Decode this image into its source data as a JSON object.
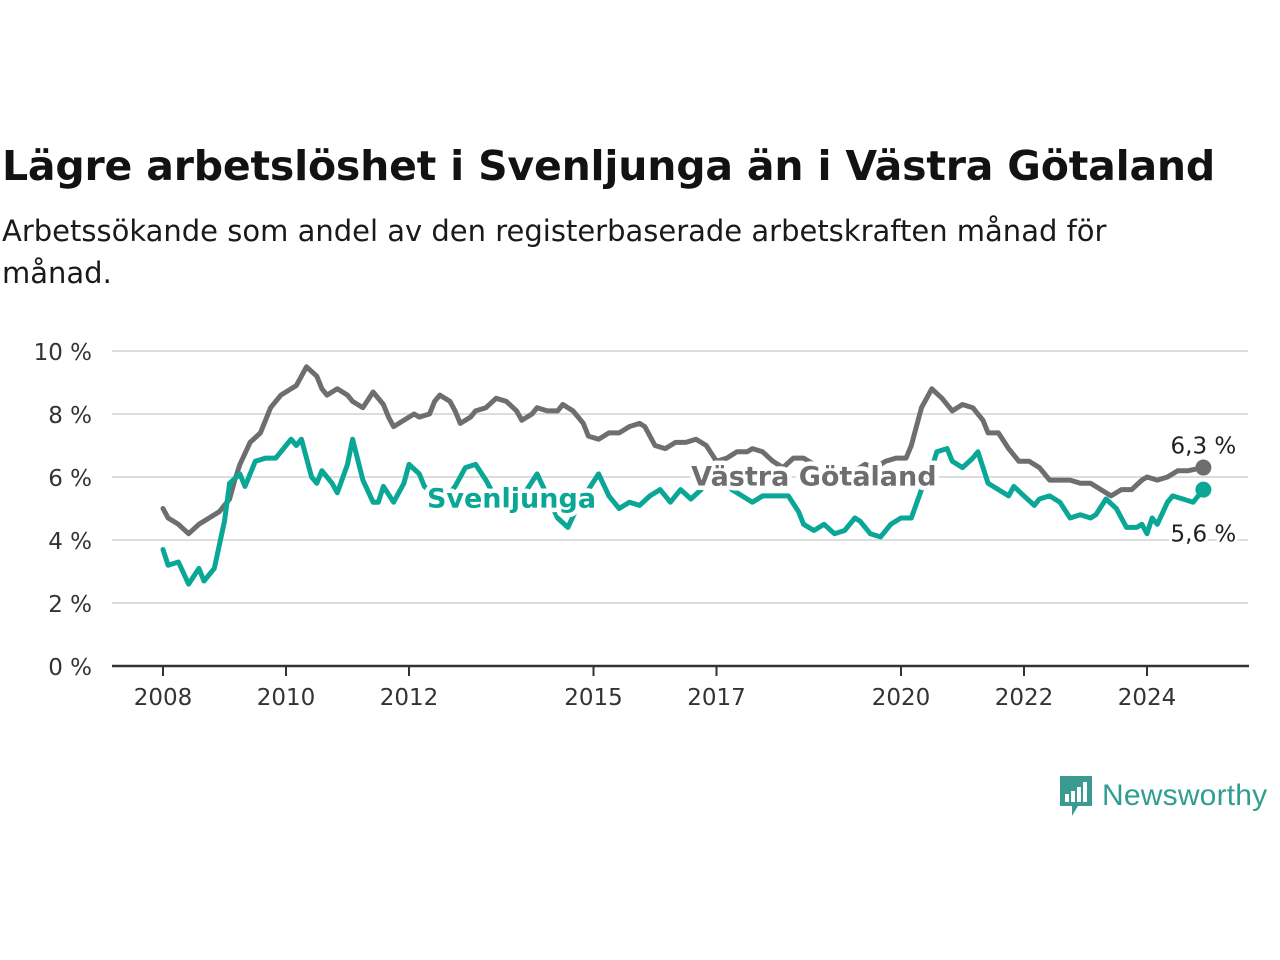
{
  "header": {
    "title": "Lägre arbetslöshet i Svenljunga än i Västra Götaland",
    "subtitle": "Arbetssökande som andel av den registerbaserade arbetskraften månad för månad."
  },
  "brand": {
    "name": "Newsworthy",
    "icon": "newsworthy-bar-chart-icon"
  },
  "colors": {
    "svenljunga": "#0aa696",
    "vastra": "#6d6e70",
    "grid": "#dddddd",
    "axis": "#333333"
  },
  "chart_data": {
    "type": "line",
    "title": "Lägre arbetslöshet i Svenljunga än i Västra Götaland",
    "subtitle": "Arbetssökande som andel av den registerbaserade arbetskraften månad för månad.",
    "xlabel": "",
    "ylabel": "",
    "ylim": [
      0,
      10
    ],
    "yticks": [
      {
        "value": 0,
        "label": "0 %"
      },
      {
        "value": 2,
        "label": "2 %"
      },
      {
        "value": 4,
        "label": "4 %"
      },
      {
        "value": 6,
        "label": "6 %"
      },
      {
        "value": 8,
        "label": "8 %"
      },
      {
        "value": 10,
        "label": "10 %"
      }
    ],
    "xlim": [
      "2008-01",
      "2025-02"
    ],
    "xticks": [
      {
        "value": "2008-01",
        "label": "2008"
      },
      {
        "value": "2010-01",
        "label": "2010"
      },
      {
        "value": "2012-01",
        "label": "2012"
      },
      {
        "value": "2015-01",
        "label": "2015"
      },
      {
        "value": "2017-01",
        "label": "2017"
      },
      {
        "value": "2020-01",
        "label": "2020"
      },
      {
        "value": "2022-01",
        "label": "2022"
      },
      {
        "value": "2024-01",
        "label": "2024"
      }
    ],
    "grid": true,
    "legend": "inline labels",
    "series": [
      {
        "name": "Västra Götaland",
        "color": "#6d6e70",
        "end_label": "6,3 %",
        "points": [
          [
            "2008-01",
            5.0
          ],
          [
            "2008-02",
            4.7
          ],
          [
            "2008-04",
            4.5
          ],
          [
            "2008-06",
            4.2
          ],
          [
            "2008-08",
            4.5
          ],
          [
            "2008-10",
            4.7
          ],
          [
            "2008-12",
            4.9
          ],
          [
            "2009-02",
            5.3
          ],
          [
            "2009-03",
            5.9
          ],
          [
            "2009-04",
            6.4
          ],
          [
            "2009-06",
            7.1
          ],
          [
            "2009-08",
            7.4
          ],
          [
            "2009-10",
            8.2
          ],
          [
            "2009-12",
            8.6
          ],
          [
            "2010-02",
            8.8
          ],
          [
            "2010-03",
            8.9
          ],
          [
            "2010-05",
            9.5
          ],
          [
            "2010-07",
            9.2
          ],
          [
            "2010-08",
            8.8
          ],
          [
            "2010-09",
            8.6
          ],
          [
            "2010-11",
            8.8
          ],
          [
            "2011-01",
            8.6
          ],
          [
            "2011-02",
            8.4
          ],
          [
            "2011-04",
            8.2
          ],
          [
            "2011-06",
            8.7
          ],
          [
            "2011-08",
            8.3
          ],
          [
            "2011-09",
            7.9
          ],
          [
            "2011-10",
            7.6
          ],
          [
            "2011-12",
            7.8
          ],
          [
            "2012-02",
            8.0
          ],
          [
            "2012-03",
            7.9
          ],
          [
            "2012-05",
            8.0
          ],
          [
            "2012-06",
            8.4
          ],
          [
            "2012-07",
            8.6
          ],
          [
            "2012-09",
            8.4
          ],
          [
            "2012-10",
            8.1
          ],
          [
            "2012-11",
            7.7
          ],
          [
            "2013-01",
            7.9
          ],
          [
            "2013-02",
            8.1
          ],
          [
            "2013-04",
            8.2
          ],
          [
            "2013-06",
            8.5
          ],
          [
            "2013-08",
            8.4
          ],
          [
            "2013-10",
            8.1
          ],
          [
            "2013-11",
            7.8
          ],
          [
            "2014-01",
            8.0
          ],
          [
            "2014-02",
            8.2
          ],
          [
            "2014-04",
            8.1
          ],
          [
            "2014-06",
            8.1
          ],
          [
            "2014-07",
            8.3
          ],
          [
            "2014-09",
            8.1
          ],
          [
            "2014-11",
            7.7
          ],
          [
            "2014-12",
            7.3
          ],
          [
            "2015-02",
            7.2
          ],
          [
            "2015-04",
            7.4
          ],
          [
            "2015-06",
            7.4
          ],
          [
            "2015-08",
            7.6
          ],
          [
            "2015-10",
            7.7
          ],
          [
            "2015-11",
            7.6
          ],
          [
            "2016-01",
            7.0
          ],
          [
            "2016-03",
            6.9
          ],
          [
            "2016-05",
            7.1
          ],
          [
            "2016-07",
            7.1
          ],
          [
            "2016-09",
            7.2
          ],
          [
            "2016-11",
            7.0
          ],
          [
            "2017-01",
            6.5
          ],
          [
            "2017-03",
            6.6
          ],
          [
            "2017-05",
            6.8
          ],
          [
            "2017-07",
            6.8
          ],
          [
            "2017-08",
            6.9
          ],
          [
            "2017-10",
            6.8
          ],
          [
            "2017-12",
            6.5
          ],
          [
            "2018-02",
            6.3
          ],
          [
            "2018-04",
            6.6
          ],
          [
            "2018-06",
            6.6
          ],
          [
            "2018-08",
            6.4
          ],
          [
            "2018-10",
            6.2
          ],
          [
            "2018-12",
            6.1
          ],
          [
            "2019-02",
            6.0
          ],
          [
            "2019-04",
            6.2
          ],
          [
            "2019-06",
            6.4
          ],
          [
            "2019-08",
            6.3
          ],
          [
            "2019-10",
            6.5
          ],
          [
            "2019-12",
            6.6
          ],
          [
            "2020-02",
            6.6
          ],
          [
            "2020-03",
            7.0
          ],
          [
            "2020-05",
            8.2
          ],
          [
            "2020-07",
            8.8
          ],
          [
            "2020-09",
            8.5
          ],
          [
            "2020-11",
            8.1
          ],
          [
            "2021-01",
            8.3
          ],
          [
            "2021-03",
            8.2
          ],
          [
            "2021-05",
            7.8
          ],
          [
            "2021-06",
            7.4
          ],
          [
            "2021-08",
            7.4
          ],
          [
            "2021-10",
            6.9
          ],
          [
            "2021-12",
            6.5
          ],
          [
            "2022-02",
            6.5
          ],
          [
            "2022-04",
            6.3
          ],
          [
            "2022-06",
            5.9
          ],
          [
            "2022-08",
            5.9
          ],
          [
            "2022-10",
            5.9
          ],
          [
            "2022-12",
            5.8
          ],
          [
            "2023-02",
            5.8
          ],
          [
            "2023-04",
            5.6
          ],
          [
            "2023-06",
            5.4
          ],
          [
            "2023-08",
            5.6
          ],
          [
            "2023-10",
            5.6
          ],
          [
            "2023-12",
            5.9
          ],
          [
            "2024-01",
            6.0
          ],
          [
            "2024-03",
            5.9
          ],
          [
            "2024-05",
            6.0
          ],
          [
            "2024-07",
            6.2
          ],
          [
            "2024-09",
            6.2
          ],
          [
            "2024-12",
            6.3
          ]
        ]
      },
      {
        "name": "Svenljunga",
        "color": "#0aa696",
        "end_label": "5,6 %",
        "points": [
          [
            "2008-01",
            3.7
          ],
          [
            "2008-02",
            3.2
          ],
          [
            "2008-04",
            3.3
          ],
          [
            "2008-06",
            2.6
          ],
          [
            "2008-08",
            3.1
          ],
          [
            "2008-09",
            2.7
          ],
          [
            "2008-11",
            3.1
          ],
          [
            "2009-01",
            4.6
          ],
          [
            "2009-02",
            5.8
          ],
          [
            "2009-04",
            6.1
          ],
          [
            "2009-05",
            5.7
          ],
          [
            "2009-07",
            6.5
          ],
          [
            "2009-09",
            6.6
          ],
          [
            "2009-11",
            6.6
          ],
          [
            "2010-02",
            7.2
          ],
          [
            "2010-03",
            7.0
          ],
          [
            "2010-04",
            7.2
          ],
          [
            "2010-06",
            6.0
          ],
          [
            "2010-07",
            5.8
          ],
          [
            "2010-08",
            6.2
          ],
          [
            "2010-10",
            5.8
          ],
          [
            "2010-11",
            5.5
          ],
          [
            "2011-01",
            6.4
          ],
          [
            "2011-02",
            7.2
          ],
          [
            "2011-04",
            5.9
          ],
          [
            "2011-06",
            5.2
          ],
          [
            "2011-07",
            5.2
          ],
          [
            "2011-08",
            5.7
          ],
          [
            "2011-10",
            5.2
          ],
          [
            "2011-12",
            5.8
          ],
          [
            "2012-01",
            6.4
          ],
          [
            "2012-03",
            6.1
          ],
          [
            "2012-04",
            5.7
          ],
          [
            "2012-06",
            5.4
          ],
          [
            "2012-08",
            5.3
          ],
          [
            "2012-10",
            5.7
          ],
          [
            "2012-12",
            6.3
          ],
          [
            "2013-02",
            6.4
          ],
          [
            "2013-04",
            5.9
          ],
          [
            "2013-06",
            5.3
          ],
          [
            "2013-08",
            5.7
          ],
          [
            "2013-10",
            5.4
          ],
          [
            "2013-12",
            5.6
          ],
          [
            "2014-02",
            6.1
          ],
          [
            "2014-04",
            5.4
          ],
          [
            "2014-06",
            4.7
          ],
          [
            "2014-08",
            4.4
          ],
          [
            "2014-10",
            5.1
          ],
          [
            "2014-12",
            5.6
          ],
          [
            "2015-02",
            6.1
          ],
          [
            "2015-04",
            5.4
          ],
          [
            "2015-06",
            5.0
          ],
          [
            "2015-08",
            5.2
          ],
          [
            "2015-10",
            5.1
          ],
          [
            "2015-12",
            5.4
          ],
          [
            "2016-02",
            5.6
          ],
          [
            "2016-04",
            5.2
          ],
          [
            "2016-06",
            5.6
          ],
          [
            "2016-08",
            5.3
          ],
          [
            "2016-10",
            5.6
          ],
          [
            "2016-12",
            6.2
          ],
          [
            "2017-01",
            6.1
          ],
          [
            "2017-02",
            6.2
          ],
          [
            "2017-04",
            5.6
          ],
          [
            "2017-06",
            5.4
          ],
          [
            "2017-08",
            5.2
          ],
          [
            "2017-10",
            5.4
          ],
          [
            "2017-12",
            5.4
          ],
          [
            "2018-03",
            5.4
          ],
          [
            "2018-05",
            4.9
          ],
          [
            "2018-06",
            4.5
          ],
          [
            "2018-08",
            4.3
          ],
          [
            "2018-10",
            4.5
          ],
          [
            "2018-12",
            4.2
          ],
          [
            "2019-02",
            4.3
          ],
          [
            "2019-04",
            4.7
          ],
          [
            "2019-05",
            4.6
          ],
          [
            "2019-07",
            4.2
          ],
          [
            "2019-09",
            4.1
          ],
          [
            "2019-11",
            4.5
          ],
          [
            "2020-01",
            4.7
          ],
          [
            "2020-03",
            4.7
          ],
          [
            "2020-05",
            5.6
          ],
          [
            "2020-07",
            6.3
          ],
          [
            "2020-08",
            6.8
          ],
          [
            "2020-10",
            6.9
          ],
          [
            "2020-11",
            6.5
          ],
          [
            "2021-01",
            6.3
          ],
          [
            "2021-03",
            6.6
          ],
          [
            "2021-04",
            6.8
          ],
          [
            "2021-06",
            5.8
          ],
          [
            "2021-08",
            5.6
          ],
          [
            "2021-10",
            5.4
          ],
          [
            "2021-11",
            5.7
          ],
          [
            "2022-01",
            5.4
          ],
          [
            "2022-03",
            5.1
          ],
          [
            "2022-04",
            5.3
          ],
          [
            "2022-06",
            5.4
          ],
          [
            "2022-08",
            5.2
          ],
          [
            "2022-10",
            4.7
          ],
          [
            "2022-12",
            4.8
          ],
          [
            "2023-02",
            4.7
          ],
          [
            "2023-03",
            4.8
          ],
          [
            "2023-05",
            5.3
          ],
          [
            "2023-07",
            5.0
          ],
          [
            "2023-09",
            4.4
          ],
          [
            "2023-11",
            4.4
          ],
          [
            "2023-12",
            4.5
          ],
          [
            "2024-01",
            4.2
          ],
          [
            "2024-02",
            4.7
          ],
          [
            "2024-03",
            4.5
          ],
          [
            "2024-05",
            5.2
          ],
          [
            "2024-06",
            5.4
          ],
          [
            "2024-08",
            5.3
          ],
          [
            "2024-10",
            5.2
          ],
          [
            "2024-12",
            5.6
          ]
        ]
      }
    ],
    "annotations": [
      {
        "text": "Svenljunga",
        "series": "Svenljunga",
        "at": "2013-09",
        "value": 5.35
      },
      {
        "text": "Västra Götaland",
        "series": "Västra Götaland",
        "at": "2018-08",
        "value": 6.05
      }
    ]
  }
}
